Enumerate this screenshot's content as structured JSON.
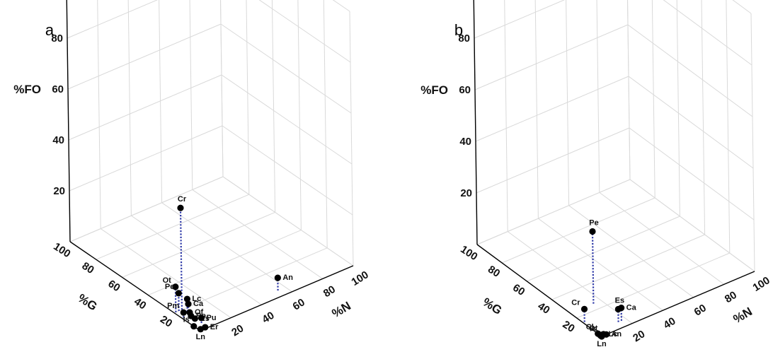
{
  "chart_data": [
    {
      "type": "scatter",
      "panel_label": "a",
      "xlabel": "%N",
      "ylabel": "%G",
      "zlabel": "%FO",
      "x_ticks": [
        "20",
        "40",
        "60",
        "80",
        "100"
      ],
      "y_ticks": [
        "20",
        "40",
        "60",
        "80",
        "100"
      ],
      "z_ticks": [
        "20",
        "40",
        "60",
        "80",
        "100"
      ],
      "xlim": [
        0,
        100
      ],
      "ylim": [
        0,
        100
      ],
      "zlim": [
        0,
        100
      ],
      "points": [
        {
          "label": "Cr",
          "N": 5,
          "G": 20,
          "FO": 40
        },
        {
          "label": "An",
          "N": 55,
          "G": 5,
          "FO": 5
        },
        {
          "label": "Ot",
          "N": 1,
          "G": 20,
          "FO": 10
        },
        {
          "label": "Pe",
          "N": 3,
          "G": 20,
          "FO": 7
        },
        {
          "label": "Lc",
          "N": 6,
          "G": 17,
          "FO": 5
        },
        {
          "label": "Ca",
          "N": 5,
          "G": 15,
          "FO": 4
        },
        {
          "label": "Of",
          "N": 5,
          "G": 14,
          "FO": 1
        },
        {
          "label": "Po",
          "N": 5,
          "G": 13,
          "FO": 0
        },
        {
          "label": "Pm",
          "N": 1,
          "G": 14,
          "FO": 2
        },
        {
          "label": "Es",
          "N": 5,
          "G": 10,
          "FO": 0
        },
        {
          "label": "Pu",
          "N": 5,
          "G": 5,
          "FO": 2
        },
        {
          "label": "Is",
          "N": 0,
          "G": 5,
          "FO": 0
        },
        {
          "label": "Er",
          "N": 4,
          "G": 1,
          "FO": 0
        },
        {
          "label": "Ln",
          "N": 1,
          "G": 1,
          "FO": 0
        }
      ]
    },
    {
      "type": "scatter",
      "panel_label": "b",
      "xlabel": "%N",
      "ylabel": "%G",
      "zlabel": "%FO",
      "x_ticks": [
        "20",
        "40",
        "60",
        "80",
        "100"
      ],
      "y_ticks": [
        "20",
        "40",
        "60",
        "80",
        "100"
      ],
      "z_ticks": [
        "20",
        "40",
        "60",
        "80",
        "100"
      ],
      "xlim": [
        0,
        100
      ],
      "ylim": [
        0,
        100
      ],
      "zlim": [
        0,
        100
      ],
      "points": [
        {
          "label": "Pe",
          "N": 15,
          "G": 25,
          "FO": 28
        },
        {
          "label": "Cr",
          "N": 1,
          "G": 15,
          "FO": 5
        },
        {
          "label": "Es",
          "N": 15,
          "G": 5,
          "FO": 5
        },
        {
          "label": "Ca",
          "N": 17,
          "G": 5,
          "FO": 5
        },
        {
          "label": "Cl",
          "N": 0,
          "G": 3,
          "FO": 0
        },
        {
          "label": "Ot",
          "N": 1,
          "G": 1,
          "FO": 0
        },
        {
          "label": "Lc",
          "N": 2,
          "G": 1,
          "FO": 0
        },
        {
          "label": "Is",
          "N": 0,
          "G": 1,
          "FO": 0
        },
        {
          "label": "An",
          "N": 3,
          "G": 0,
          "FO": 0
        },
        {
          "label": "Ln",
          "N": 0,
          "G": 0,
          "FO": 0
        }
      ]
    }
  ]
}
